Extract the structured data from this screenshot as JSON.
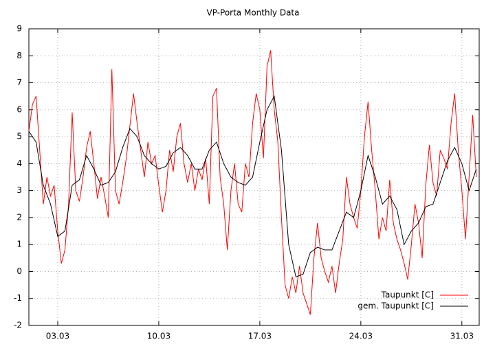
{
  "chart_data": {
    "type": "line",
    "title": "VP-Porta Monthly Data",
    "xlim": [
      1,
      32.2
    ],
    "ylim": [
      -2,
      9
    ],
    "xticks": [
      {
        "value": 3,
        "label": "03.03"
      },
      {
        "value": 10,
        "label": "10.03"
      },
      {
        "value": 17,
        "label": "17.03"
      },
      {
        "value": 24,
        "label": "24.03"
      },
      {
        "value": 31,
        "label": "31.03"
      }
    ],
    "yticks": [
      -2,
      -1,
      0,
      1,
      2,
      3,
      4,
      5,
      6,
      7,
      8,
      9
    ],
    "grid": true,
    "legend": "bottom-right",
    "series": [
      {
        "name": "Taupunkt [C]",
        "color": "#ff0000",
        "x": [
          1,
          1.25,
          1.5,
          1.75,
          2,
          2.25,
          2.5,
          2.75,
          3,
          3.25,
          3.5,
          3.75,
          4,
          4.25,
          4.5,
          4.75,
          5,
          5.25,
          5.5,
          5.75,
          6,
          6.25,
          6.5,
          6.75,
          7,
          7.25,
          7.5,
          7.75,
          8,
          8.25,
          8.5,
          8.75,
          9,
          9.25,
          9.5,
          9.75,
          10,
          10.25,
          10.5,
          10.75,
          11,
          11.25,
          11.5,
          11.75,
          12,
          12.25,
          12.5,
          12.75,
          13,
          13.25,
          13.5,
          13.75,
          14,
          14.25,
          14.5,
          14.75,
          15,
          15.25,
          15.5,
          15.75,
          16,
          16.25,
          16.5,
          16.75,
          17,
          17.25,
          17.5,
          17.75,
          18,
          18.25,
          18.5,
          18.75,
          19,
          19.25,
          19.5,
          19.75,
          20,
          20.25,
          20.5,
          20.75,
          21,
          21.25,
          21.5,
          21.75,
          22,
          22.25,
          22.5,
          22.75,
          23,
          23.25,
          23.5,
          23.75,
          24,
          24.25,
          24.5,
          24.75,
          25,
          25.25,
          25.5,
          25.75,
          26,
          26.25,
          26.5,
          26.75,
          27,
          27.25,
          27.5,
          27.75,
          28,
          28.25,
          28.5,
          28.75,
          29,
          29.25,
          29.5,
          29.75,
          30,
          30.25,
          30.5,
          30.75,
          31,
          31.25,
          31.5,
          31.75,
          32
        ],
        "values": [
          5.2,
          6.2,
          6.5,
          4.5,
          2.5,
          3.5,
          2.8,
          3.2,
          1.5,
          0.3,
          0.8,
          2.5,
          5.9,
          3.0,
          2.6,
          3.5,
          4.6,
          5.2,
          4.0,
          2.7,
          3.5,
          2.8,
          2.0,
          7.5,
          3.0,
          2.5,
          3.3,
          4.2,
          5.4,
          6.6,
          5.5,
          4.5,
          3.5,
          4.8,
          4.0,
          4.3,
          3.2,
          2.2,
          3.0,
          4.5,
          3.7,
          5.0,
          5.5,
          4.0,
          3.3,
          4.0,
          3.0,
          3.8,
          3.4,
          4.2,
          2.5,
          6.5,
          6.8,
          3.5,
          2.5,
          0.8,
          3.0,
          4.0,
          2.5,
          2.2,
          4.0,
          3.5,
          5.5,
          6.6,
          6.0,
          4.2,
          7.6,
          8.2,
          6.0,
          4.8,
          2.0,
          -0.5,
          -1.0,
          -0.2,
          -0.8,
          0.2,
          -0.8,
          -1.2,
          -1.6,
          0.5,
          1.8,
          0.5,
          0.0,
          -0.4,
          0.2,
          -0.8,
          0.3,
          1.2,
          3.5,
          2.5,
          2.0,
          1.6,
          3.0,
          5.0,
          6.3,
          4.5,
          3.0,
          1.2,
          2.0,
          1.5,
          3.4,
          1.8,
          1.2,
          0.8,
          0.3,
          -0.3,
          1.0,
          2.5,
          1.8,
          0.5,
          3.2,
          4.7,
          3.3,
          2.8,
          4.5,
          4.2,
          3.8,
          5.5,
          6.6,
          4.5,
          3.0,
          1.2,
          3.5,
          5.8,
          3.5
        ]
      },
      {
        "name": "gem. Taupunkt [C]",
        "color": "#000000",
        "x": [
          1,
          1.5,
          2,
          2.5,
          3,
          3.5,
          4,
          4.5,
          5,
          5.5,
          6,
          6.5,
          7,
          7.5,
          8,
          8.5,
          9,
          9.5,
          10,
          10.5,
          11,
          11.5,
          12,
          12.5,
          13,
          13.5,
          14,
          14.5,
          15,
          15.5,
          16,
          16.5,
          17,
          17.5,
          18,
          18.5,
          19,
          19.5,
          20,
          20.5,
          21,
          21.5,
          22,
          22.5,
          23,
          23.5,
          24,
          24.5,
          25,
          25.5,
          26,
          26.5,
          27,
          27.5,
          28,
          28.5,
          29,
          29.5,
          30,
          30.5,
          31,
          31.5,
          32
        ],
        "values": [
          5.2,
          4.8,
          3.2,
          2.5,
          1.3,
          1.5,
          3.2,
          3.4,
          4.3,
          3.8,
          3.2,
          3.3,
          3.7,
          4.6,
          5.3,
          5.0,
          4.3,
          4.0,
          3.8,
          3.9,
          4.4,
          4.6,
          4.3,
          3.8,
          3.8,
          4.5,
          4.8,
          4.0,
          3.5,
          3.3,
          3.2,
          3.5,
          4.8,
          6.0,
          6.5,
          4.5,
          1.0,
          -0.2,
          -0.1,
          0.7,
          0.9,
          0.8,
          0.8,
          1.5,
          2.2,
          2.0,
          3.0,
          4.3,
          3.5,
          2.5,
          2.8,
          2.3,
          1.0,
          1.5,
          1.8,
          2.4,
          2.5,
          3.3,
          4.1,
          4.6,
          4.0,
          3.0,
          3.8
        ]
      }
    ]
  }
}
